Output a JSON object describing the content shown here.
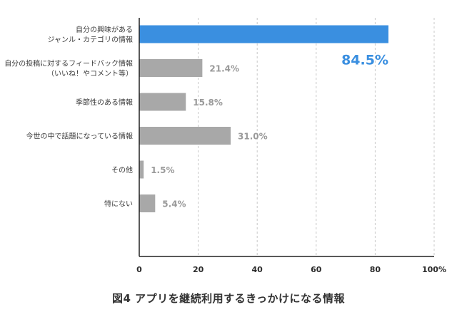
{
  "caption": "図4 アプリを継続利用するきっかけになる情報",
  "chart_data": {
    "type": "bar",
    "orientation": "horizontal",
    "categories": [
      [
        "自分の興味がある",
        "ジャンル・カテゴリの情報"
      ],
      [
        "自分の投稿に対するフィードバック情報",
        "（いいね！やコメント等）"
      ],
      [
        "季節性のある情報"
      ],
      [
        "今世の中で話題になっている情報"
      ],
      [
        "その他"
      ],
      [
        "特にない"
      ]
    ],
    "values": [
      84.5,
      21.4,
      15.8,
      31.0,
      1.5,
      5.4
    ],
    "value_labels": [
      "84.5%",
      "21.4%",
      "15.8%",
      "31.0%",
      "1.5%",
      "5.4%"
    ],
    "highlight_index": 0,
    "xlim": [
      0,
      100
    ],
    "x_ticks": [
      "0",
      "20",
      "40",
      "60",
      "80",
      "100%"
    ],
    "grid": true,
    "colors": {
      "highlight": "#3a8fe0",
      "bar": "#a8a8a8",
      "grid": "#c8c8c8",
      "axis": "#222222",
      "highlight_label": "#3a8fe0",
      "value_label": "#9a9a9a"
    }
  }
}
